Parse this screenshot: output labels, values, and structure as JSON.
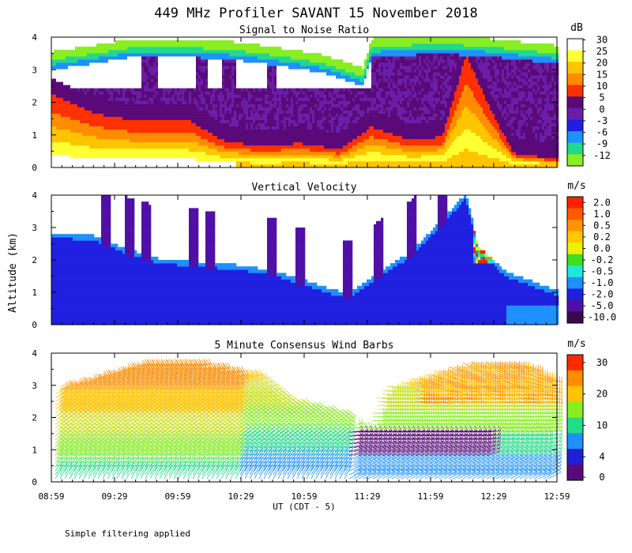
{
  "title": "449 MHz Profiler SAVANT 15 November 2018",
  "ylabel": "Altitude (km)",
  "xlabel": "UT (CDT - 5)",
  "footnote": "Simple filtering applied",
  "chart_data": [
    {
      "type": "heatmap",
      "title": "Signal to Noise Ratio",
      "x_ticks": [
        "08:59",
        "09:29",
        "09:59",
        "10:29",
        "10:59",
        "11:29",
        "11:59",
        "12:29",
        "12:59"
      ],
      "ylim": [
        0,
        4
      ],
      "y_ticks": [
        "0",
        "1",
        "2",
        "3",
        "4"
      ],
      "colorbar_unit": "dB",
      "colorbar_labels": [
        "30",
        "25",
        "20",
        "15",
        "10",
        "5",
        "0",
        "-3",
        "-6",
        "-9",
        "-12"
      ],
      "colorbar_colors": [
        "#ffffff",
        "#ffff33",
        "#ffc400",
        "#ff8c00",
        "#ff3000",
        "#5a0a78",
        "#6a1ea8",
        "#1f1fe0",
        "#1e90ff",
        "#22d88c",
        "#88ee22"
      ]
    },
    {
      "type": "heatmap",
      "title": "Vertical Velocity",
      "x_ticks": [
        "08:59",
        "09:29",
        "09:59",
        "10:29",
        "10:59",
        "11:29",
        "11:59",
        "12:29",
        "12:59"
      ],
      "ylim": [
        0,
        4
      ],
      "y_ticks": [
        "0",
        "1",
        "2",
        "3",
        "4"
      ],
      "colorbar_unit": "m/s",
      "colorbar_labels": [
        "2.0",
        "1.0",
        "0.5",
        "0.2",
        "0.0",
        "-0.2",
        "-0.5",
        "-1.0",
        "-2.0",
        "-5.0",
        "-10.0"
      ],
      "colorbar_colors": [
        "#ff2000",
        "#ff5a00",
        "#ff9400",
        "#ffc800",
        "#f0f000",
        "#40dd20",
        "#20e8d8",
        "#1e90ff",
        "#2020e0",
        "#5010a8",
        "#3a0a50"
      ]
    },
    {
      "type": "scatter",
      "title": "5 Minute Consensus Wind Barbs",
      "x_ticks": [
        "08:59",
        "09:29",
        "09:59",
        "10:29",
        "10:59",
        "11:29",
        "11:59",
        "12:29",
        "12:59"
      ],
      "ylim": [
        0,
        4
      ],
      "y_ticks": [
        "0",
        "1",
        "2",
        "3",
        "4"
      ],
      "colorbar_unit": "m/s",
      "colorbar_labels": [
        "30",
        "20",
        "10",
        "4",
        "0"
      ],
      "colorbar_colors": [
        "#ff2a00",
        "#ff8c00",
        "#ffc400",
        "#88ee22",
        "#22dd88",
        "#1e90ff",
        "#2020d0",
        "#5a0a78"
      ]
    }
  ]
}
